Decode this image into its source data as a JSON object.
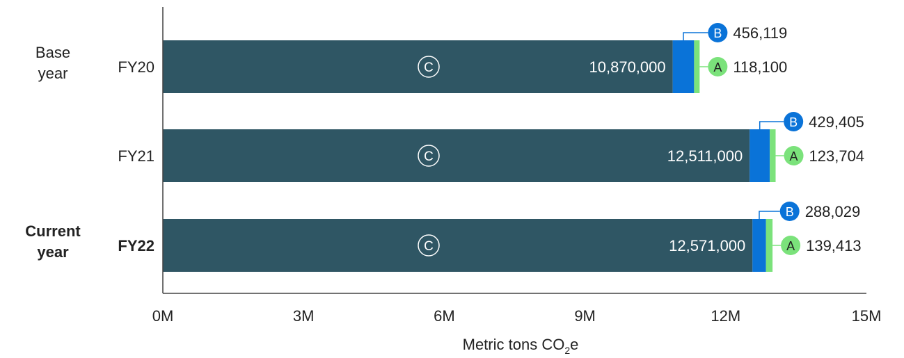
{
  "chart_data": {
    "type": "bar",
    "orientation": "horizontal",
    "stacked": true,
    "categories": [
      "FY20",
      "FY21",
      "FY22"
    ],
    "category_groups": [
      {
        "label": [
          "Base",
          "year"
        ],
        "category": "FY20",
        "bold": false
      },
      {
        "label": [
          "Current",
          "year"
        ],
        "category": "FY22",
        "bold": true
      }
    ],
    "bold_categories": [
      "FY22"
    ],
    "series": [
      {
        "name": "C",
        "color": "#2f5664",
        "values": [
          10870000,
          12511000,
          12571000
        ],
        "labels": [
          "10,870,000",
          "12,511,000",
          "12,571,000"
        ]
      },
      {
        "name": "B",
        "color": "#0a73d8",
        "values": [
          456119,
          429405,
          288029
        ],
        "labels": [
          "456,119",
          "429,405",
          "288,029"
        ]
      },
      {
        "name": "A",
        "color": "#7be27b",
        "values": [
          118100,
          123704,
          139413
        ],
        "labels": [
          "118,100",
          "123,704",
          "139,413"
        ]
      }
    ],
    "xlim": [
      0,
      15000000
    ],
    "xticks": [
      0,
      3000000,
      6000000,
      9000000,
      12000000,
      15000000
    ],
    "xtick_labels": [
      "0M",
      "3M",
      "6M",
      "9M",
      "12M",
      "15M"
    ],
    "xlabel": {
      "prefix": "Metric tons CO",
      "sub": "2",
      "suffix": "e"
    },
    "grid": false,
    "legend": "none"
  }
}
